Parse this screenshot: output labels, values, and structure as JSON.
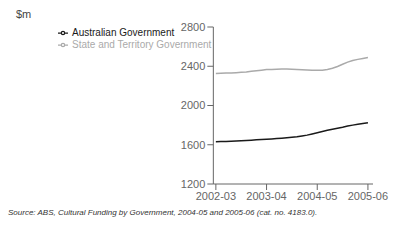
{
  "chart_data": {
    "type": "line",
    "y_label": "$m",
    "annotations": [
      "Source: ABS, Cultural Funding by Government, 2004-05 and 2005-06 (cat. no. 4183.0)."
    ],
    "x": [
      0,
      0.1,
      0.2,
      0.3,
      0.4,
      0.5,
      0.6,
      0.7,
      0.8,
      0.9,
      1.0,
      1.1,
      1.2,
      1.3,
      1.4,
      1.5,
      1.6,
      1.7,
      1.8,
      1.9,
      2.0,
      2.1,
      2.2,
      2.3,
      2.4,
      2.5,
      2.6,
      2.7,
      2.8,
      2.9,
      3.0
    ],
    "series": [
      {
        "name": "Australian Government",
        "color": "#1a1a1a",
        "values": [
          1630,
          1632,
          1634,
          1636,
          1638,
          1641,
          1644,
          1647,
          1650,
          1653,
          1656,
          1659,
          1663,
          1667,
          1671,
          1676,
          1682,
          1690,
          1698,
          1710,
          1722,
          1735,
          1748,
          1758,
          1768,
          1778,
          1790,
          1800,
          1808,
          1816,
          1825
        ]
      },
      {
        "name": "State and Territory Government",
        "color": "#aaaaaa",
        "values": [
          2325,
          2328,
          2330,
          2332,
          2335,
          2338,
          2342,
          2348,
          2354,
          2360,
          2366,
          2368,
          2370,
          2371,
          2372,
          2370,
          2368,
          2365,
          2362,
          2360,
          2358,
          2360,
          2368,
          2380,
          2398,
          2420,
          2442,
          2458,
          2470,
          2480,
          2490
        ]
      }
    ],
    "xlim": [
      -0.05,
      3.1
    ],
    "xticks": [
      {
        "value": 0,
        "label": "2002-03"
      },
      {
        "value": 1,
        "label": "2003-04"
      },
      {
        "value": 2,
        "label": "2004-05"
      },
      {
        "value": 3,
        "label": "2005-06"
      }
    ],
    "ylim": [
      1200,
      2800
    ],
    "yticks": [
      1200,
      1600,
      2000,
      2400,
      2800
    ],
    "grid": false,
    "legend": "upper left"
  }
}
